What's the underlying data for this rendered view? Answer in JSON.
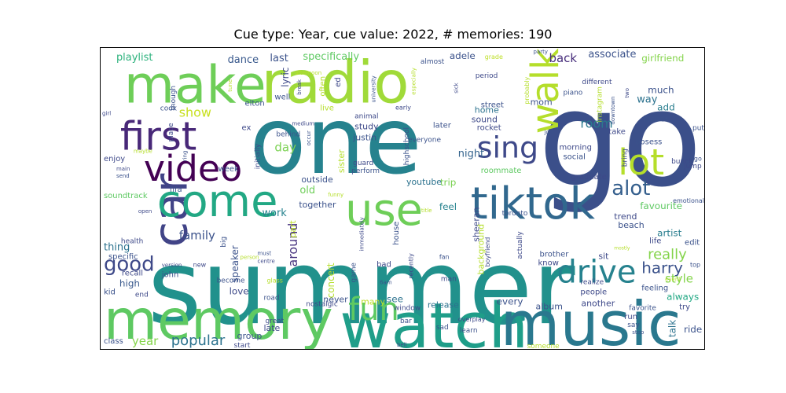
{
  "chart_data": {
    "type": "wordcloud",
    "title": "Cue type: Year, cue value: 2022, # memories: 190",
    "palette": "viridis",
    "words": [
      {
        "text": "summer",
        "weight": 100,
        "color": "#21918c"
      },
      {
        "text": "go",
        "weight": 80,
        "color": "#3b4f8a"
      },
      {
        "text": "one",
        "weight": 68,
        "color": "#26828e"
      },
      {
        "text": "watch",
        "weight": 52,
        "color": "#1f9e89"
      },
      {
        "text": "music",
        "weight": 52,
        "color": "#2a788e"
      },
      {
        "text": "memory",
        "weight": 50,
        "color": "#5ec962"
      },
      {
        "text": "radio",
        "weight": 50,
        "color": "#a0da39"
      },
      {
        "text": "make",
        "weight": 48,
        "color": "#6ece58"
      },
      {
        "text": "car",
        "weight": 46,
        "color": "#414487"
      },
      {
        "text": "come",
        "weight": 42,
        "color": "#22a884"
      },
      {
        "text": "use",
        "weight": 40,
        "color": "#6ece58"
      },
      {
        "text": "tiktok",
        "weight": 40,
        "color": "#31688e"
      },
      {
        "text": "first",
        "weight": 36,
        "color": "#482878"
      },
      {
        "text": "video",
        "weight": 34,
        "color": "#440154"
      },
      {
        "text": "walk",
        "weight": 34,
        "color": "#b5de2b"
      },
      {
        "text": "lot",
        "weight": 32,
        "color": "#b5de2b"
      },
      {
        "text": "sing",
        "weight": 30,
        "color": "#3e4989"
      },
      {
        "text": "drive",
        "weight": 28,
        "color": "#26828e"
      },
      {
        "text": "fun",
        "weight": 28,
        "color": "#5ec962"
      },
      {
        "text": "alot",
        "weight": 20,
        "color": "#355f8d"
      },
      {
        "text": "good",
        "weight": 20,
        "color": "#3e4989"
      },
      {
        "text": "harry",
        "weight": 16,
        "color": "#3b528b"
      },
      {
        "text": "really",
        "weight": 16,
        "color": "#84d44b"
      },
      {
        "text": "popular",
        "weight": 14,
        "color": "#2c728e"
      },
      {
        "text": "show",
        "weight": 13,
        "color": "#c8e020"
      },
      {
        "text": "room",
        "weight": 13,
        "color": "#2a788e"
      },
      {
        "text": "around",
        "weight": 13,
        "color": "#46327e"
      },
      {
        "text": "family",
        "weight": 12,
        "color": "#3b528b"
      },
      {
        "text": "year",
        "weight": 12,
        "color": "#84d44b"
      },
      {
        "text": "day",
        "weight": 12,
        "color": "#7ad151"
      },
      {
        "text": "style",
        "weight": 12,
        "color": "#84d44b"
      },
      {
        "text": "back",
        "weight": 12,
        "color": "#472d7b"
      },
      {
        "text": "playlist",
        "weight": 11,
        "color": "#2db27d"
      },
      {
        "text": "dance",
        "weight": 11,
        "color": "#38588c"
      },
      {
        "text": "last",
        "weight": 11,
        "color": "#3b528b"
      },
      {
        "text": "specifically",
        "weight": 11,
        "color": "#5ec962"
      },
      {
        "text": "associate",
        "weight": 11,
        "color": "#3b528b"
      },
      {
        "text": "girlfriend",
        "weight": 10,
        "color": "#84d44b"
      },
      {
        "text": "lyric",
        "weight": 10,
        "color": "#3e4989"
      },
      {
        "text": "adele",
        "weight": 10,
        "color": "#3b528b"
      },
      {
        "text": "night",
        "weight": 11,
        "color": "#33638d"
      },
      {
        "text": "way",
        "weight": 11,
        "color": "#2c728e"
      },
      {
        "text": "much",
        "weight": 10,
        "color": "#3b528b"
      },
      {
        "text": "add",
        "weight": 10,
        "color": "#287d8e"
      },
      {
        "text": "old",
        "weight": 11,
        "color": "#6ece58"
      },
      {
        "text": "work",
        "weight": 11,
        "color": "#26828e"
      },
      {
        "text": "thing",
        "weight": 11,
        "color": "#2c728e"
      },
      {
        "text": "speaker",
        "weight": 10,
        "color": "#3b528b"
      },
      {
        "text": "concert",
        "weight": 10,
        "color": "#b5de2b"
      },
      {
        "text": "artist",
        "weight": 10,
        "color": "#287d8e"
      },
      {
        "text": "favourite",
        "weight": 10,
        "color": "#5ec962"
      },
      {
        "text": "trip",
        "weight": 10,
        "color": "#7ad151"
      },
      {
        "text": "feel",
        "weight": 10,
        "color": "#26828e"
      },
      {
        "text": "love",
        "weight": 10,
        "color": "#3e4989"
      },
      {
        "text": "high",
        "weight": 10,
        "color": "#38588c"
      },
      {
        "text": "see",
        "weight": 10,
        "color": "#2c728e"
      },
      {
        "text": "always",
        "weight": 10,
        "color": "#22a884"
      },
      {
        "text": "every",
        "weight": 10,
        "color": "#3b528b"
      },
      {
        "text": "talk",
        "weight": 10,
        "color": "#2c728e"
      },
      {
        "text": "ride",
        "weight": 10,
        "color": "#3b528b"
      },
      {
        "text": "release",
        "weight": 9,
        "color": "#2c728e"
      },
      {
        "text": "album",
        "weight": 9,
        "color": "#3b528b"
      },
      {
        "text": "another",
        "weight": 9,
        "color": "#3e4989"
      },
      {
        "text": "never",
        "weight": 9,
        "color": "#3b528b"
      },
      {
        "text": "many",
        "weight": 9,
        "color": "#bddf26"
      },
      {
        "text": "late",
        "weight": 9,
        "color": "#3e4989"
      },
      {
        "text": "group",
        "weight": 9,
        "color": "#3b528b"
      },
      {
        "text": "sheeran",
        "weight": 9,
        "color": "#3e4989"
      },
      {
        "text": "background",
        "weight": 9,
        "color": "#b5de2b"
      },
      {
        "text": "recall",
        "weight": 8,
        "color": "#3e4989"
      },
      {
        "text": "specific",
        "weight": 8,
        "color": "#3b528b"
      },
      {
        "text": "sister",
        "weight": 8,
        "color": "#b5de2b"
      },
      {
        "text": "sound",
        "weight": 9,
        "color": "#3e4989"
      },
      {
        "text": "home",
        "weight": 9,
        "color": "#2c728e"
      },
      {
        "text": "mom",
        "weight": 9,
        "color": "#3b528b"
      },
      {
        "text": "justin",
        "weight": 8,
        "color": "#3b528b"
      },
      {
        "text": "study",
        "weight": 8,
        "color": "#3e4989"
      },
      {
        "text": "outside",
        "weight": 8,
        "color": "#3b528b"
      },
      {
        "text": "together",
        "weight": 8,
        "color": "#3b528b"
      },
      {
        "text": "youtube",
        "weight": 8,
        "color": "#2c728e"
      },
      {
        "text": "trend",
        "weight": 8,
        "color": "#3e4989"
      },
      {
        "text": "beach",
        "weight": 8,
        "color": "#3b528b"
      },
      {
        "text": "sit",
        "weight": 8,
        "color": "#3e4989"
      },
      {
        "text": "edit",
        "weight": 8,
        "color": "#3b528b"
      },
      {
        "text": "life",
        "weight": 7,
        "color": "#3e4989"
      },
      {
        "text": "feeling",
        "weight": 8,
        "color": "#3b528b"
      },
      {
        "text": "people",
        "weight": 8,
        "color": "#3e4989"
      },
      {
        "text": "brother",
        "weight": 7,
        "color": "#3b528b"
      },
      {
        "text": "know",
        "weight": 8,
        "color": "#3e4989"
      },
      {
        "text": "part",
        "weight": 8,
        "color": "#bddf26"
      },
      {
        "text": "take",
        "weight": 8,
        "color": "#3e4989"
      },
      {
        "text": "bieber",
        "weight": 8,
        "color": "#3b528b"
      },
      {
        "text": "morning",
        "weight": 8,
        "color": "#3e4989"
      },
      {
        "text": "social",
        "weight": 7,
        "color": "#3b528b"
      },
      {
        "text": "roommate",
        "weight": 7,
        "color": "#5ec962"
      },
      {
        "text": "graduate",
        "weight": 7,
        "color": "#3e4989"
      },
      {
        "text": "obsess",
        "weight": 7,
        "color": "#3b528b"
      },
      {
        "text": "jump",
        "weight": 7,
        "color": "#3e4989"
      },
      {
        "text": "put",
        "weight": 7,
        "color": "#3b528b"
      },
      {
        "text": "bunch",
        "weight": 7,
        "color": "#3e4989"
      },
      {
        "text": "emotional",
        "weight": 6,
        "color": "#3b528b"
      },
      {
        "text": "elton",
        "weight": 7,
        "color": "#3b528b"
      },
      {
        "text": "ex",
        "weight": 7,
        "color": "#3e4989"
      },
      {
        "text": "well",
        "weight": 7,
        "color": "#3b528b"
      },
      {
        "text": "often",
        "weight": 7,
        "color": "#b5de2b"
      },
      {
        "text": "live",
        "weight": 7,
        "color": "#b5de2b"
      },
      {
        "text": "early",
        "weight": 6,
        "color": "#3e4989"
      },
      {
        "text": "street",
        "weight": 7,
        "color": "#3b528b"
      },
      {
        "text": "rocket",
        "weight": 7,
        "color": "#3e4989"
      },
      {
        "text": "everyone",
        "weight": 7,
        "color": "#3b528b"
      },
      {
        "text": "guard",
        "weight": 7,
        "color": "#3e4989"
      },
      {
        "text": "perform",
        "weight": 7,
        "color": "#3b528b"
      },
      {
        "text": "animal",
        "weight": 7,
        "color": "#3e4989"
      },
      {
        "text": "later",
        "weight": 7,
        "color": "#3b528b"
      },
      {
        "text": "piano",
        "weight": 7,
        "color": "#3b528b"
      },
      {
        "text": "period",
        "weight": 7,
        "color": "#3e4989"
      },
      {
        "text": "almost",
        "weight": 7,
        "color": "#3b528b"
      },
      {
        "text": "grade",
        "weight": 6,
        "color": "#bddf26"
      },
      {
        "text": "week",
        "weight": 7,
        "color": "#3b528b"
      },
      {
        "text": "enjoy",
        "weight": 7,
        "color": "#3e4989"
      },
      {
        "text": "soundtrack",
        "weight": 7,
        "color": "#5ec962"
      },
      {
        "text": "fifa",
        "weight": 7,
        "color": "#3b528b"
      },
      {
        "text": "new",
        "weight": 6,
        "color": "#3e4989"
      },
      {
        "text": "john",
        "weight": 7,
        "color": "#3b528b"
      },
      {
        "text": "health",
        "weight": 6,
        "color": "#3e4989"
      },
      {
        "text": "kid",
        "weight": 7,
        "color": "#3b528b"
      },
      {
        "text": "end",
        "weight": 6,
        "color": "#3e4989"
      },
      {
        "text": "class",
        "weight": 7,
        "color": "#3b528b"
      },
      {
        "text": "start",
        "weight": 6,
        "color": "#3e4989"
      },
      {
        "text": "become",
        "weight": 6,
        "color": "#3b528b"
      },
      {
        "text": "great",
        "weight": 6,
        "color": "#3e4989"
      },
      {
        "text": "road",
        "weight": 6,
        "color": "#3b528b"
      },
      {
        "text": "glass",
        "weight": 6,
        "color": "#b5de2b"
      },
      {
        "text": "nostalgic",
        "weight": 6,
        "color": "#3e4989"
      },
      {
        "text": "game",
        "weight": 6,
        "color": "#3b528b"
      },
      {
        "text": "bad",
        "weight": 7,
        "color": "#3e4989"
      },
      {
        "text": "bar",
        "weight": 6,
        "color": "#3b528b"
      },
      {
        "text": "window",
        "weight": 6,
        "color": "#3e4989"
      },
      {
        "text": "sad",
        "weight": 6,
        "color": "#3b528b"
      },
      {
        "text": "overplay",
        "weight": 6,
        "color": "#3e4989"
      },
      {
        "text": "learn",
        "weight": 7,
        "color": "#3b528b"
      },
      {
        "text": "run",
        "weight": 7,
        "color": "#3e4989"
      },
      {
        "text": "say",
        "weight": 6,
        "color": "#3b528b"
      },
      {
        "text": "try",
        "weight": 7,
        "color": "#3e4989"
      },
      {
        "text": "favorite",
        "weight": 7,
        "color": "#3b528b"
      },
      {
        "text": "realize",
        "weight": 7,
        "color": "#3e4989"
      },
      {
        "text": "event",
        "weight": 6,
        "color": "#b5de2b"
      },
      {
        "text": "top",
        "weight": 6,
        "color": "#3b528b"
      },
      {
        "text": "man",
        "weight": 7,
        "color": "#3e4989"
      },
      {
        "text": "fan",
        "weight": 6,
        "color": "#3b528b"
      },
      {
        "text": "boyfriend",
        "weight": 6,
        "color": "#3e4989"
      },
      {
        "text": "toronto",
        "weight": 6,
        "color": "#3b528b"
      },
      {
        "text": "actually",
        "weight": 6,
        "color": "#3e4989"
      },
      {
        "text": "house",
        "weight": 7,
        "color": "#3b528b"
      },
      {
        "text": "recently",
        "weight": 6,
        "color": "#3e4989"
      },
      {
        "text": "6am",
        "weight": 5,
        "color": "#3b528b"
      },
      {
        "text": "highschool",
        "weight": 6,
        "color": "#3b528b"
      },
      {
        "text": "immediately",
        "weight": 5,
        "color": "#3e4989"
      },
      {
        "text": "title",
        "weight": 5,
        "color": "#b5de2b"
      },
      {
        "text": "person",
        "weight": 5,
        "color": "#b5de2b"
      },
      {
        "text": "open",
        "weight": 5,
        "color": "#3e4989"
      },
      {
        "text": "funny",
        "weight": 5,
        "color": "#b5de2b"
      },
      {
        "text": "ring",
        "weight": 5,
        "color": "#3b528b"
      },
      {
        "text": "main",
        "weight": 5,
        "color": "#3e4989"
      },
      {
        "text": "send",
        "weight": 5,
        "color": "#3b528b"
      },
      {
        "text": "maybe",
        "weight": 5,
        "color": "#b5de2b"
      },
      {
        "text": "girl",
        "weight": 5,
        "color": "#3e4989"
      },
      {
        "text": "cook",
        "weight": 6,
        "color": "#3b528b"
      },
      {
        "text": "place",
        "weight": 6,
        "color": "#3e4989"
      },
      {
        "text": "though",
        "weight": 6,
        "color": "#3b528b"
      },
      {
        "text": "tune",
        "weight": 5,
        "color": "#b5de2b"
      },
      {
        "text": "afternoon",
        "weight": 5,
        "color": "#b5de2b"
      },
      {
        "text": "initially",
        "weight": 6,
        "color": "#3e4989"
      },
      {
        "text": "behind",
        "weight": 7,
        "color": "#3b528b"
      },
      {
        "text": "medium",
        "weight": 5,
        "color": "#3e4989"
      },
      {
        "text": "occur",
        "weight": 5,
        "color": "#3b528b"
      },
      {
        "text": "break",
        "weight": 5,
        "color": "#3e4989"
      },
      {
        "text": "university",
        "weight": 5,
        "color": "#3b528b"
      },
      {
        "text": "especially",
        "weight": 5,
        "color": "#b5de2b"
      },
      {
        "text": "sick",
        "weight": 5,
        "color": "#3e4989"
      },
      {
        "text": "probably",
        "weight": 6,
        "color": "#b5de2b"
      },
      {
        "text": "party",
        "weight": 5,
        "color": "#3b528b"
      },
      {
        "text": "different",
        "weight": 6,
        "color": "#3e4989"
      },
      {
        "text": "instagram",
        "weight": 6,
        "color": "#b5de2b"
      },
      {
        "text": "downtown",
        "weight": 5,
        "color": "#3b528b"
      },
      {
        "text": "two",
        "weight": 5,
        "color": "#3e4989"
      },
      {
        "text": "job",
        "weight": 5,
        "color": "#3b528b"
      },
      {
        "text": "bring",
        "weight": 6,
        "color": "#3e4989"
      },
      {
        "text": "ago",
        "weight": 6,
        "color": "#3b528b"
      },
      {
        "text": "version",
        "weight": 5,
        "color": "#3e4989"
      },
      {
        "text": "must",
        "weight": 5,
        "color": "#3b528b"
      },
      {
        "text": "centre",
        "weight": 5,
        "color": "#3e4989"
      },
      {
        "text": "big",
        "weight": 6,
        "color": "#3b528b"
      },
      {
        "text": "bell",
        "weight": 5,
        "color": "#3e4989"
      },
      {
        "text": "someone",
        "weight": 6,
        "color": "#b5de2b"
      },
      {
        "text": "stop",
        "weight": 5,
        "color": "#3b528b"
      },
      {
        "text": "mostly",
        "weight": 5,
        "color": "#b5de2b"
      },
      {
        "text": "ed",
        "weight": 6,
        "color": "#3e4989"
      }
    ]
  }
}
